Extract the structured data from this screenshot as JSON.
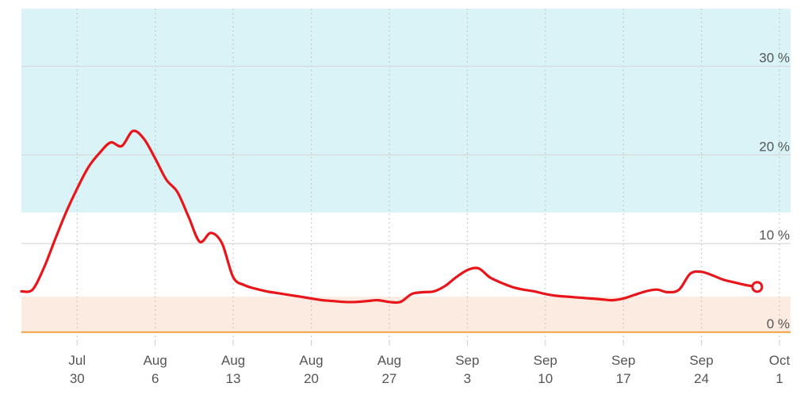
{
  "chart_data": {
    "type": "line",
    "title": "",
    "xlabel": "",
    "ylabel": "",
    "ylim": [
      -1,
      36.5
    ],
    "xlim": [
      "2018-07-25",
      "2018-10-01"
    ],
    "grid": {
      "horizontal": true,
      "vertical_dotted": true
    },
    "bands": [
      {
        "from": 13.5,
        "to": 36.5,
        "color": "#d9f3f7"
      },
      {
        "from": 0,
        "to": 4,
        "color": "#fcebe0"
      }
    ],
    "colors": {
      "line": "#e8161a",
      "grid": "#d9d9d9",
      "baseline": "#f5a442",
      "marker_fill": "#ffffff"
    },
    "y_ticks": [
      {
        "value": 0,
        "label": "0 %"
      },
      {
        "value": 10,
        "label": "10 %"
      },
      {
        "value": 20,
        "label": "20 %"
      },
      {
        "value": 30,
        "label": "30 %"
      }
    ],
    "x_ticks": [
      {
        "date": "2018-07-30",
        "month": "Jul",
        "day": "30"
      },
      {
        "date": "2018-08-06",
        "month": "Aug",
        "day": "6"
      },
      {
        "date": "2018-08-13",
        "month": "Aug",
        "day": "13"
      },
      {
        "date": "2018-08-20",
        "month": "Aug",
        "day": "20"
      },
      {
        "date": "2018-08-27",
        "month": "Aug",
        "day": "27"
      },
      {
        "date": "2018-09-03",
        "month": "Sep",
        "day": "3"
      },
      {
        "date": "2018-09-10",
        "month": "Sep",
        "day": "10"
      },
      {
        "date": "2018-09-17",
        "month": "Sep",
        "day": "17"
      },
      {
        "date": "2018-09-24",
        "month": "Sep",
        "day": "24"
      },
      {
        "date": "2018-10-01",
        "month": "Oct",
        "day": "1"
      }
    ],
    "series": [
      {
        "points": [
          [
            "2018-07-25",
            4.6
          ],
          [
            "2018-07-26",
            4.8
          ],
          [
            "2018-07-27",
            7.2
          ],
          [
            "2018-07-28",
            10.4
          ],
          [
            "2018-07-29",
            13.5
          ],
          [
            "2018-07-30",
            16.2
          ],
          [
            "2018-07-31",
            18.6
          ],
          [
            "2018-08-01",
            20.2
          ],
          [
            "2018-08-02",
            21.4
          ],
          [
            "2018-08-03",
            21.0
          ],
          [
            "2018-08-04",
            22.7
          ],
          [
            "2018-08-05",
            21.8
          ],
          [
            "2018-08-06",
            19.6
          ],
          [
            "2018-08-07",
            17.2
          ],
          [
            "2018-08-08",
            15.8
          ],
          [
            "2018-08-09",
            13.0
          ],
          [
            "2018-08-10",
            10.2
          ],
          [
            "2018-08-11",
            11.2
          ],
          [
            "2018-08-12",
            10.0
          ],
          [
            "2018-08-13",
            6.2
          ],
          [
            "2018-08-14",
            5.3
          ],
          [
            "2018-08-15",
            4.9
          ],
          [
            "2018-08-16",
            4.6
          ],
          [
            "2018-08-17",
            4.4
          ],
          [
            "2018-08-18",
            4.2
          ],
          [
            "2018-08-19",
            4.0
          ],
          [
            "2018-08-20",
            3.8
          ],
          [
            "2018-08-21",
            3.6
          ],
          [
            "2018-08-22",
            3.5
          ],
          [
            "2018-08-23",
            3.4
          ],
          [
            "2018-08-24",
            3.4
          ],
          [
            "2018-08-25",
            3.5
          ],
          [
            "2018-08-26",
            3.6
          ],
          [
            "2018-08-27",
            3.4
          ],
          [
            "2018-08-28",
            3.4
          ],
          [
            "2018-08-29",
            4.3
          ],
          [
            "2018-08-30",
            4.5
          ],
          [
            "2018-08-31",
            4.6
          ],
          [
            "2018-09-01",
            5.2
          ],
          [
            "2018-09-02",
            6.2
          ],
          [
            "2018-09-03",
            7.0
          ],
          [
            "2018-09-04",
            7.2
          ],
          [
            "2018-09-05",
            6.2
          ],
          [
            "2018-09-06",
            5.6
          ],
          [
            "2018-09-07",
            5.1
          ],
          [
            "2018-09-08",
            4.8
          ],
          [
            "2018-09-09",
            4.6
          ],
          [
            "2018-09-10",
            4.3
          ],
          [
            "2018-09-11",
            4.1
          ],
          [
            "2018-09-12",
            4.0
          ],
          [
            "2018-09-13",
            3.9
          ],
          [
            "2018-09-14",
            3.8
          ],
          [
            "2018-09-15",
            3.7
          ],
          [
            "2018-09-16",
            3.6
          ],
          [
            "2018-09-17",
            3.8
          ],
          [
            "2018-09-18",
            4.2
          ],
          [
            "2018-09-19",
            4.6
          ],
          [
            "2018-09-20",
            4.8
          ],
          [
            "2018-09-21",
            4.5
          ],
          [
            "2018-09-22",
            4.8
          ],
          [
            "2018-09-23",
            6.6
          ],
          [
            "2018-09-24",
            6.8
          ],
          [
            "2018-09-25",
            6.4
          ],
          [
            "2018-09-26",
            5.9
          ],
          [
            "2018-09-27",
            5.6
          ],
          [
            "2018-09-28",
            5.3
          ],
          [
            "2018-09-29",
            5.1
          ]
        ],
        "end_marker": true
      }
    ]
  }
}
